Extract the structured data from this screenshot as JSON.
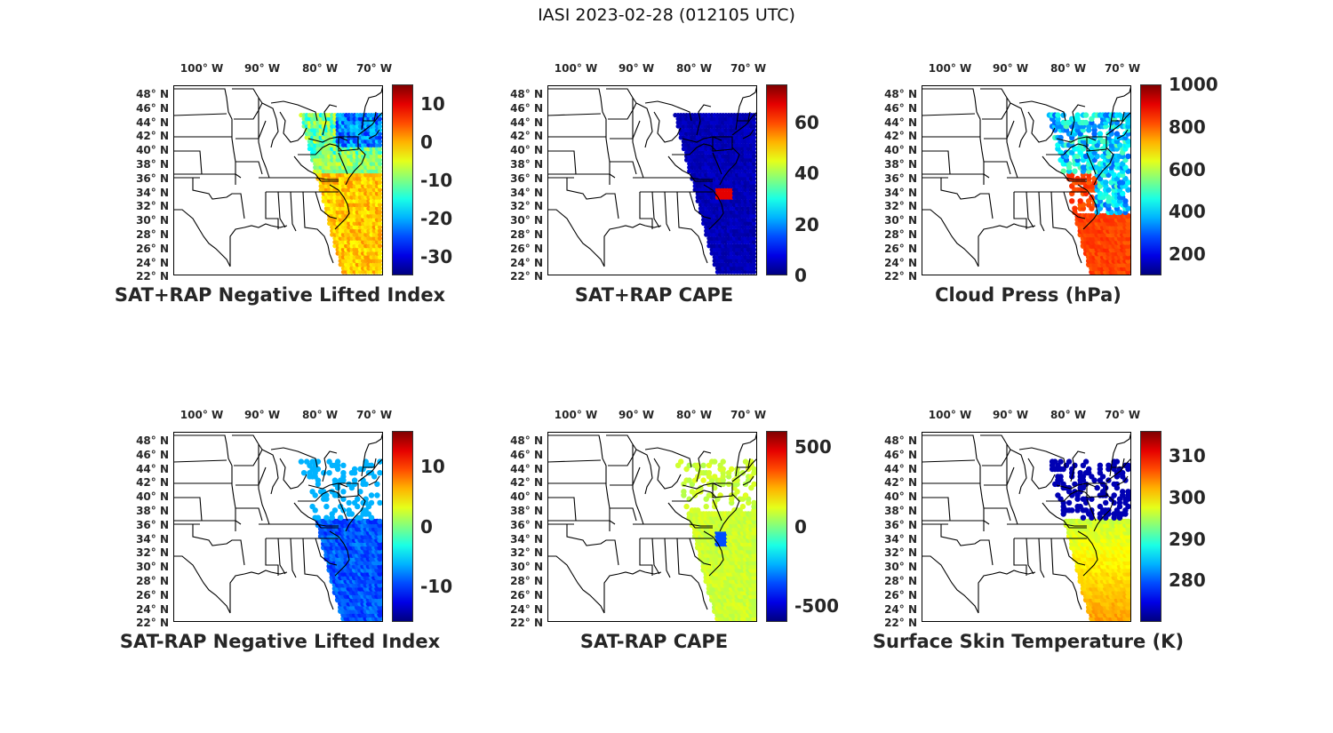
{
  "figure": {
    "title": "IASI 2023-02-28 (012105 UTC)"
  },
  "lon_labels": [
    "100° W",
    "90° W",
    "80° W",
    "70° W"
  ],
  "lat_labels": [
    "48° N",
    "46° N",
    "44° N",
    "42° N",
    "40° N",
    "38° N",
    "36° N",
    "34° N",
    "32° N",
    "30° N",
    "28° N",
    "26° N",
    "24° N",
    "22° N"
  ],
  "colormap": "jet",
  "panels": [
    {
      "id": "sat-rap-plus-neg-li",
      "title": "SAT+RAP Negative Lifted Index",
      "colorbar": {
        "min": -35,
        "max": 15,
        "ticks": [
          "10",
          "0",
          "-10",
          "-20",
          "-30"
        ],
        "tick_values": [
          10,
          0,
          -10,
          -20,
          -30
        ]
      }
    },
    {
      "id": "sat-rap-plus-cape",
      "title": "SAT+RAP CAPE",
      "colorbar": {
        "min": 0,
        "max": 75,
        "ticks": [
          "60",
          "40",
          "20",
          "0"
        ],
        "tick_values": [
          60,
          40,
          20,
          0
        ]
      }
    },
    {
      "id": "cloud-press",
      "title": "Cloud Press (hPa)",
      "colorbar": {
        "min": 100,
        "max": 1000,
        "ticks": [
          "1000",
          "800",
          "600",
          "400",
          "200"
        ],
        "tick_values": [
          1000,
          800,
          600,
          400,
          200
        ]
      }
    },
    {
      "id": "sat-minus-rap-neg-li",
      "title": "SAT-RAP Negative Lifted Index",
      "colorbar": {
        "min": -16,
        "max": 16,
        "ticks": [
          "10",
          "0",
          "-10"
        ],
        "tick_values": [
          10,
          0,
          -10
        ]
      }
    },
    {
      "id": "sat-minus-rap-cape",
      "title": "SAT-RAP CAPE",
      "colorbar": {
        "min": -600,
        "max": 600,
        "ticks": [
          "500",
          "0",
          "-500"
        ],
        "tick_values": [
          500,
          0,
          -500
        ]
      }
    },
    {
      "id": "surface-skin-temp",
      "title": "Surface Skin Temperature (K)",
      "colorbar": {
        "min": 270,
        "max": 316,
        "ticks": [
          "310",
          "300",
          "290",
          "280"
        ],
        "tick_values": [
          310,
          300,
          290,
          280
        ]
      }
    }
  ]
}
